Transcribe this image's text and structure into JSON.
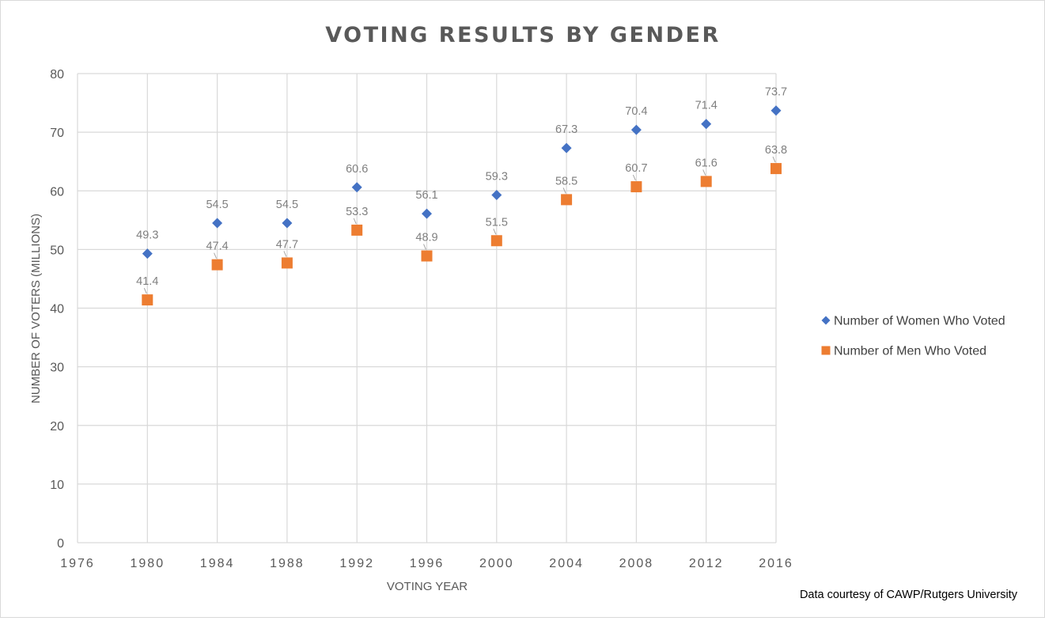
{
  "chart_data": {
    "type": "scatter",
    "title": "VOTING RESULTS BY GENDER",
    "xlabel": "VOTING YEAR",
    "ylabel": "NUMBER OF VOTERS (MILLIONS)",
    "xlim": [
      1976,
      2016
    ],
    "ylim": [
      0,
      80
    ],
    "x_ticks": [
      "1976",
      "1980",
      "1984",
      "1988",
      "1992",
      "1996",
      "2000",
      "2004",
      "2008",
      "2012",
      "2016"
    ],
    "y_ticks": [
      "0",
      "10",
      "20",
      "30",
      "40",
      "50",
      "60",
      "70",
      "80"
    ],
    "grid": true,
    "legend_position": "right",
    "series": [
      {
        "name": "Number of Women Who Voted",
        "color": "#4472c4",
        "marker": "diamond",
        "x": [
          1980,
          1984,
          1988,
          1992,
          1996,
          2000,
          2004,
          2008,
          2012,
          2016
        ],
        "values": [
          49.3,
          54.5,
          54.5,
          60.6,
          56.1,
          59.3,
          67.3,
          70.4,
          71.4,
          73.7
        ],
        "labels": [
          "49.3",
          "54.5",
          "54.5",
          "60.6",
          "56.1",
          "59.3",
          "67.3",
          "70.4",
          "71.4",
          "73.7"
        ]
      },
      {
        "name": "Number of Men Who Voted",
        "color": "#ed7d31",
        "marker": "square",
        "x": [
          1980,
          1984,
          1988,
          1992,
          1996,
          2000,
          2004,
          2008,
          2012,
          2016
        ],
        "values": [
          41.4,
          47.4,
          47.7,
          53.3,
          48.9,
          51.5,
          58.5,
          60.7,
          61.6,
          63.8
        ],
        "labels": [
          "41.4",
          "47.4",
          "47.7",
          "53.3",
          "48.9",
          "51.5",
          "58.5",
          "60.7",
          "61.6",
          "63.8"
        ]
      }
    ],
    "annotation": "Data courtesy of CAWP/Rutgers University"
  }
}
